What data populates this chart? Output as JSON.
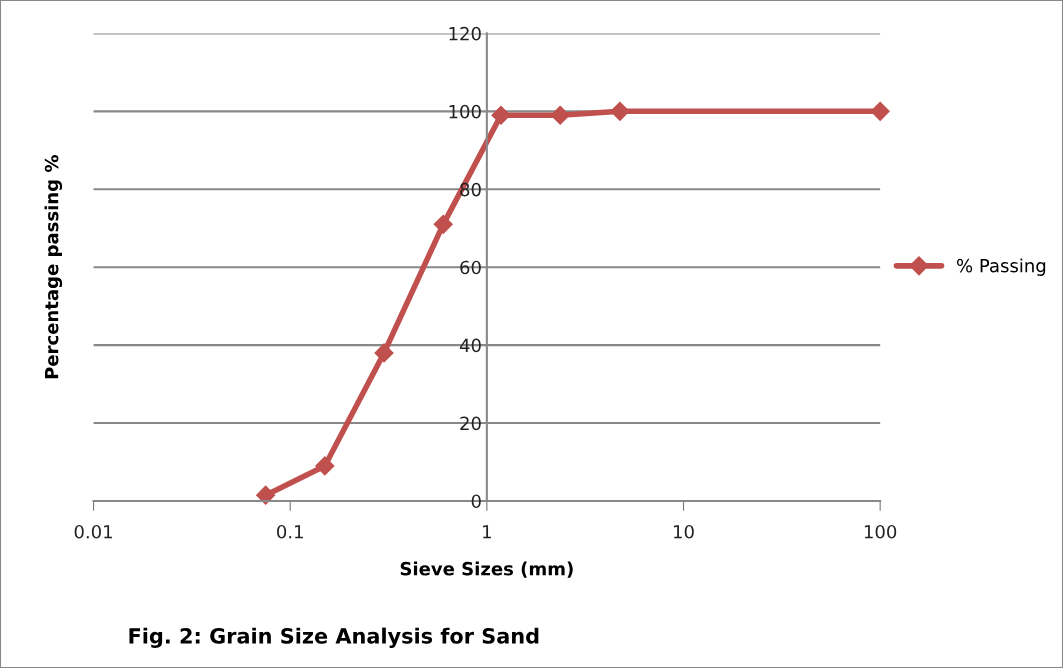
{
  "chart_data": {
    "type": "line",
    "xlabel": "Sieve Sizes (mm)",
    "ylabel": "Percentage passing %",
    "x": [
      0.075,
      0.15,
      0.3,
      0.6,
      1.18,
      2.36,
      4.75,
      100
    ],
    "series": [
      {
        "name": "% Passing",
        "color": "#c0504d",
        "values": [
          1.5,
          9,
          38,
          71,
          99,
          99,
          100,
          100
        ]
      }
    ],
    "log": "x",
    "xlim": [
      0.01,
      100
    ],
    "xticks": [
      0.01,
      0.1,
      1,
      10,
      100
    ],
    "ylim": [
      0,
      120
    ],
    "yticks": [
      0,
      20,
      40,
      60,
      80,
      100,
      120
    ],
    "grid": "y",
    "legend": "right",
    "marker": "diamond",
    "line_style": "solid",
    "annotations": [
      "Fig. 2: Grain Size Analysis for Sand"
    ]
  }
}
